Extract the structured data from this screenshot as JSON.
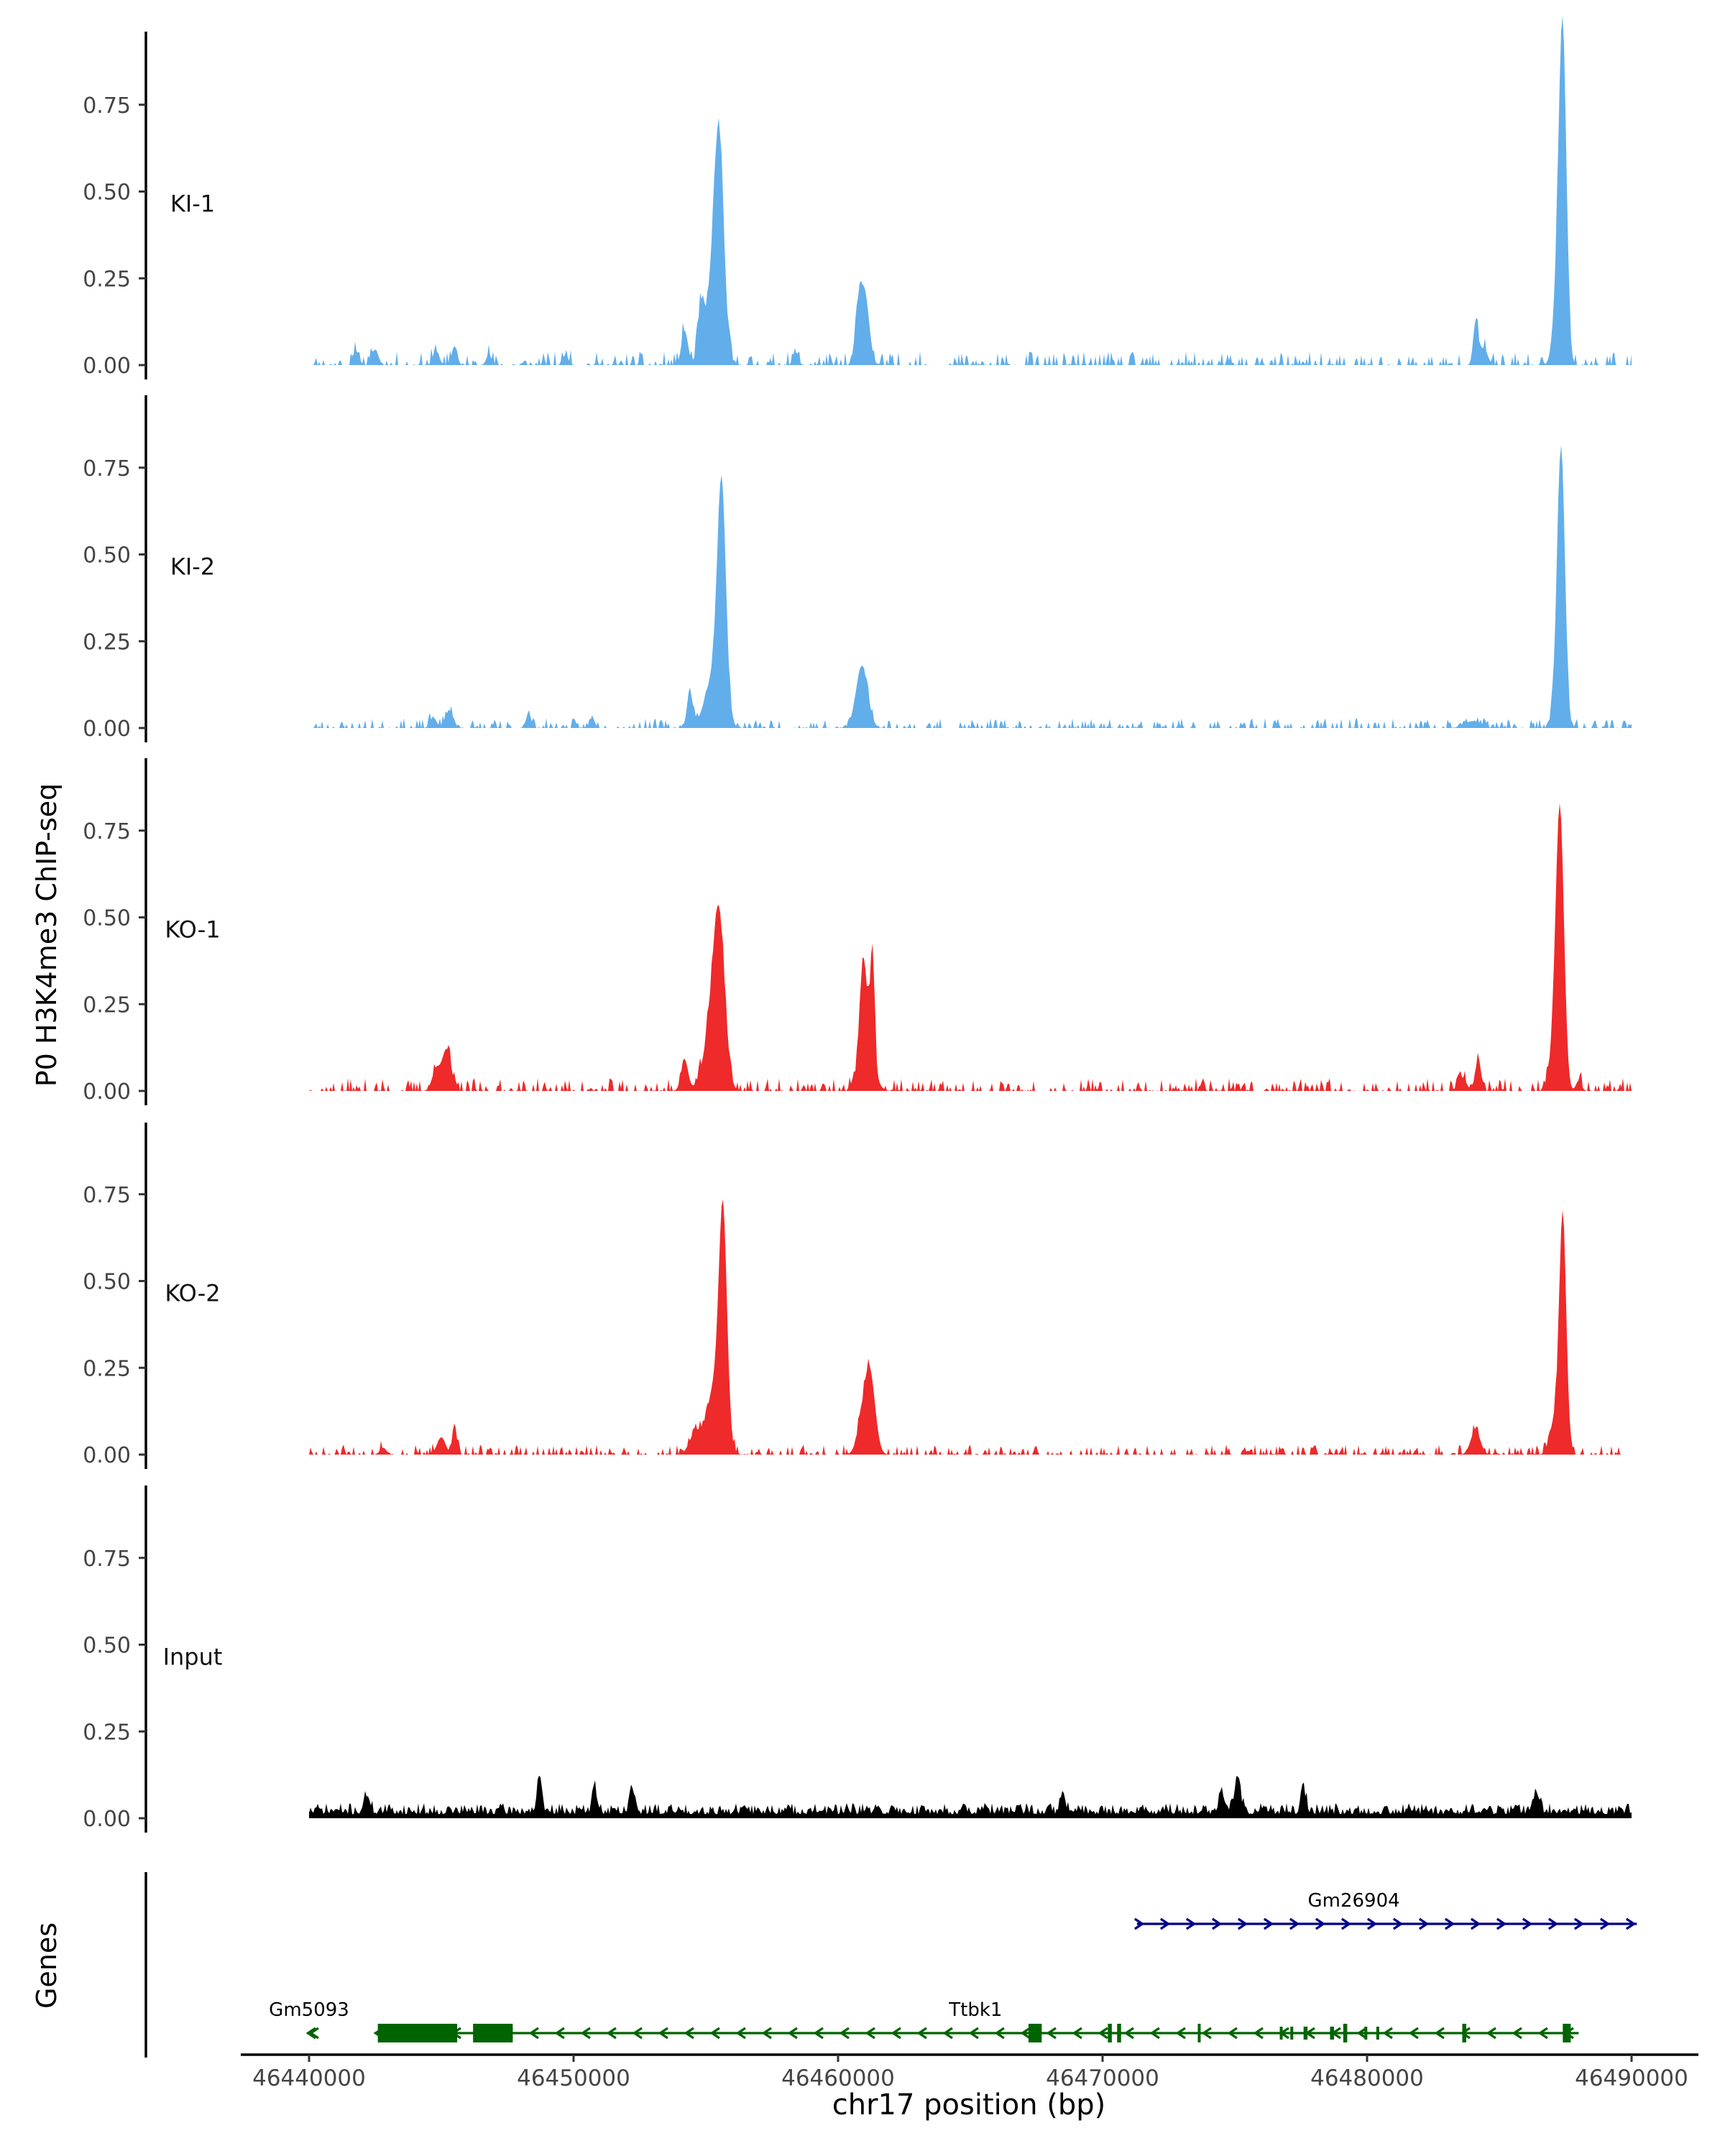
{
  "chart_data": {
    "type": "area",
    "ylabel": "P0 H3K4me3 ChIP-seq",
    "xlabel": "chr17 position (bp)",
    "xlim": [
      46440000,
      46490000
    ],
    "ylim": [
      0,
      0.95
    ],
    "ytick_values": [
      0,
      0.25,
      0.5,
      0.75
    ],
    "ytick_labels": [
      "0.00",
      "0.25",
      "0.50",
      "0.75"
    ],
    "xtick_values": [
      46440000,
      46450000,
      46460000,
      46470000,
      46480000,
      46490000
    ],
    "xtick_labels": [
      "46440000",
      "46450000",
      "46460000",
      "46470000",
      "46480000",
      "46490000"
    ],
    "tracks": [
      {
        "name": "KI-1",
        "color": "#62aeea",
        "peaks": [
          [
            46455500,
            0.55,
            180
          ],
          [
            46455250,
            0.2,
            300
          ],
          [
            46454200,
            0.1,
            120
          ],
          [
            46454800,
            0.12,
            100
          ],
          [
            46461000,
            0.21,
            170
          ],
          [
            46460750,
            0.12,
            120
          ],
          [
            46484100,
            0.12,
            90
          ],
          [
            46487400,
            0.91,
            140
          ],
          [
            46487200,
            0.2,
            160
          ],
          [
            46484400,
            0.05,
            150
          ],
          [
            46444800,
            0.04,
            120
          ],
          [
            46445500,
            0.055,
            100
          ],
          [
            46442500,
            0.045,
            120
          ],
          [
            46441800,
            0.04,
            100
          ],
          [
            46446800,
            0.03,
            100
          ],
          [
            46449700,
            0.03,
            100
          ],
          [
            46458400,
            0.035,
            100
          ]
        ],
        "noise": 0.018,
        "seed": 11
      },
      {
        "name": "KI-2",
        "color": "#62aeea",
        "peaks": [
          [
            46455600,
            0.63,
            160
          ],
          [
            46455300,
            0.15,
            320
          ],
          [
            46454400,
            0.1,
            110
          ],
          [
            46460900,
            0.18,
            220
          ],
          [
            46487350,
            0.72,
            140
          ],
          [
            46487200,
            0.15,
            150
          ],
          [
            46445300,
            0.05,
            150
          ],
          [
            46444700,
            0.03,
            120
          ],
          [
            46448300,
            0.04,
            100
          ],
          [
            46450700,
            0.03,
            100
          ],
          [
            46484000,
            0.02,
            300
          ]
        ],
        "noise": 0.013,
        "seed": 23
      },
      {
        "name": "KO-1",
        "color": "#ee2a2a",
        "peaks": [
          [
            46455500,
            0.44,
            220
          ],
          [
            46455200,
            0.15,
            300
          ],
          [
            46454200,
            0.09,
            130
          ],
          [
            46461300,
            0.32,
            80
          ],
          [
            46460950,
            0.28,
            140
          ],
          [
            46461100,
            0.12,
            260
          ],
          [
            46487300,
            0.75,
            150
          ],
          [
            46487100,
            0.15,
            170
          ],
          [
            46484200,
            0.09,
            110
          ],
          [
            46483600,
            0.04,
            150
          ],
          [
            46445200,
            0.12,
            170
          ],
          [
            46444800,
            0.06,
            150
          ],
          [
            46488000,
            0.03,
            100
          ]
        ],
        "noise": 0.017,
        "seed": 37
      },
      {
        "name": "KO-2",
        "color": "#ee2a2a",
        "peaks": [
          [
            46455650,
            0.61,
            150
          ],
          [
            46455350,
            0.2,
            300
          ],
          [
            46454600,
            0.06,
            220
          ],
          [
            46461200,
            0.23,
            200
          ],
          [
            46460900,
            0.07,
            200
          ],
          [
            46487400,
            0.68,
            130
          ],
          [
            46487100,
            0.1,
            180
          ],
          [
            46484100,
            0.07,
            180
          ],
          [
            46445500,
            0.09,
            80
          ],
          [
            46445000,
            0.05,
            160
          ],
          [
            46442800,
            0.02,
            120
          ]
        ],
        "noise": 0.013,
        "seed": 51
      },
      {
        "name": "Input",
        "color": "#000000",
        "peaks": [
          [
            46448700,
            0.09,
            90
          ],
          [
            46450800,
            0.07,
            90
          ],
          [
            46452200,
            0.07,
            90
          ],
          [
            46475100,
            0.09,
            120
          ],
          [
            46468500,
            0.05,
            100
          ],
          [
            46474500,
            0.06,
            100
          ],
          [
            46477600,
            0.06,
            100
          ],
          [
            46486400,
            0.06,
            120
          ],
          [
            46442200,
            0.05,
            100
          ]
        ],
        "noise": 0.038,
        "seed": 71,
        "continuous": true
      }
    ],
    "genes_label": "Genes",
    "genes": [
      {
        "name": "Gm26904",
        "strand": "+",
        "color": "#00008b",
        "row": 0,
        "start": 46471300,
        "end": 46490200,
        "label_x": 46479500,
        "exons": []
      },
      {
        "name": "Gm5093",
        "strand": "-",
        "color": "#006400",
        "row": 1,
        "start": 46440000,
        "end": 46440300,
        "label_x": 46440000,
        "exons": []
      },
      {
        "name": "Ttbk1",
        "strand": "-",
        "color": "#006400",
        "row": 1,
        "start": 46442500,
        "end": 46488000,
        "label_x": 46465200,
        "exons": [
          [
            46442600,
            46445600,
            "thick"
          ],
          [
            46446200,
            46447700,
            "thick"
          ],
          [
            46467200,
            46467700,
            "thick"
          ],
          [
            46470200,
            46470350,
            "thick"
          ],
          [
            46470550,
            46470700,
            "thick"
          ],
          [
            46473600,
            46473700,
            "thick"
          ],
          [
            46476700,
            46476800,
            "thin"
          ],
          [
            46477100,
            46477200,
            "thin"
          ],
          [
            46477600,
            46477750,
            "thin"
          ],
          [
            46478600,
            46478750,
            "thin"
          ],
          [
            46479100,
            46479250,
            "thick"
          ],
          [
            46479900,
            46480000,
            "thin"
          ],
          [
            46480350,
            46480450,
            "thin"
          ],
          [
            46483600,
            46483750,
            "thick"
          ],
          [
            46487400,
            46487700,
            "thick"
          ]
        ]
      }
    ]
  }
}
